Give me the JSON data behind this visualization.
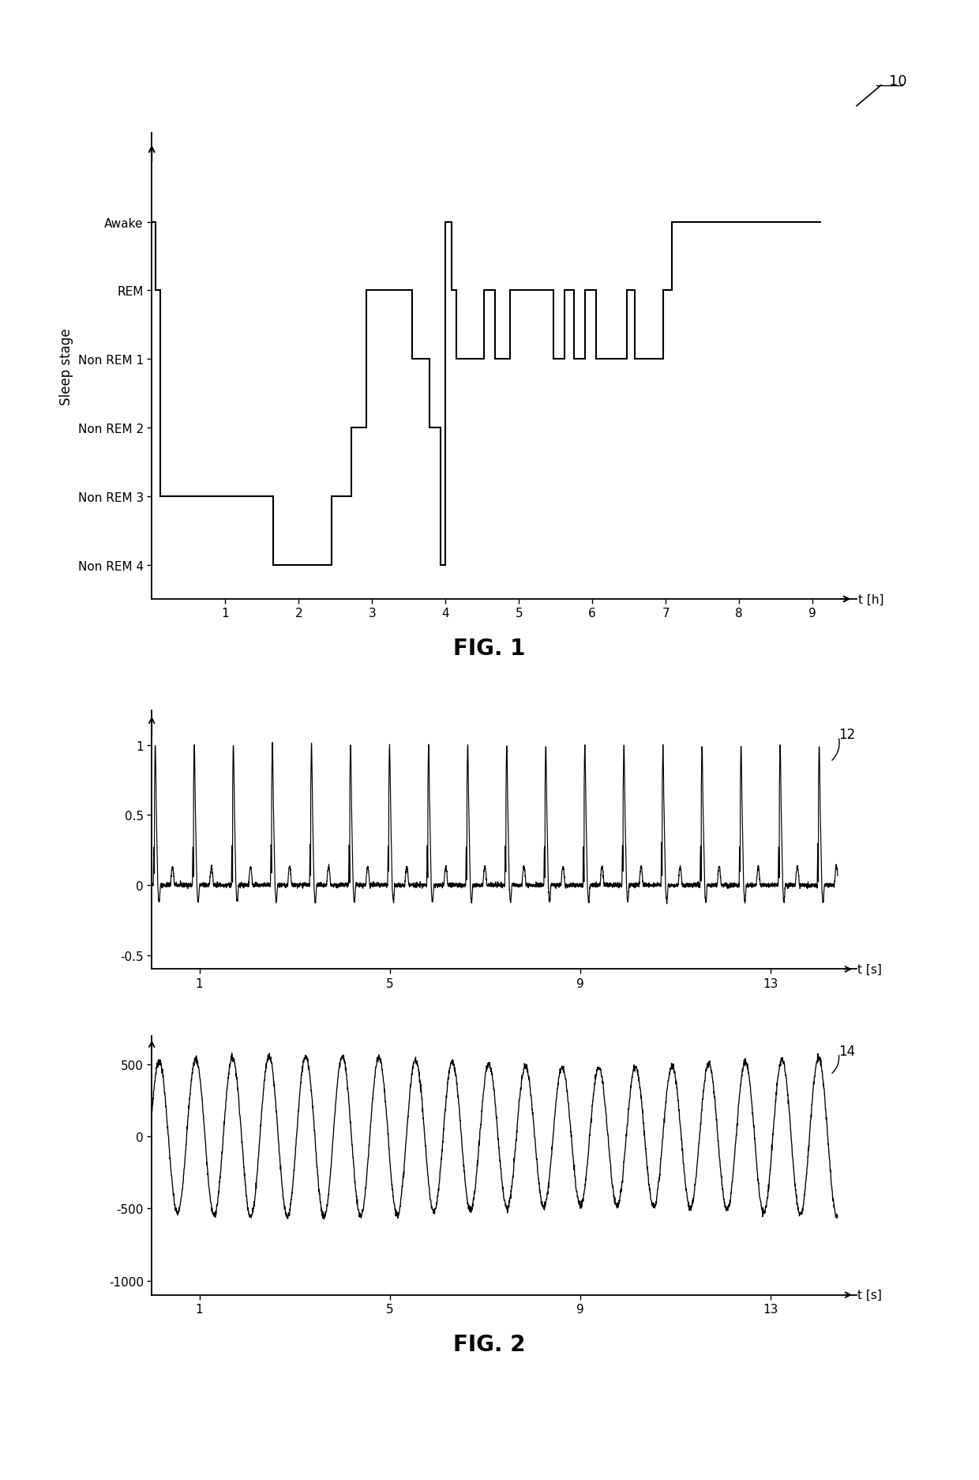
{
  "fig1_title": "FIG. 1",
  "fig2_title": "FIG. 2",
  "sleep_ylabel": "Sleep stage",
  "sleep_xlabel": "t [h]",
  "sleep_ytick_vals": [
    0,
    1,
    2,
    3,
    4,
    5
  ],
  "sleep_yticklabels": [
    "Non REM 4",
    "Non REM 3",
    "Non REM 2",
    "Non REM 1",
    "REM",
    "Awake"
  ],
  "sleep_xlim": [
    0,
    9.6
  ],
  "sleep_ylim": [
    -0.5,
    6.3
  ],
  "sleep_xticks": [
    1,
    2,
    3,
    4,
    5,
    6,
    7,
    8,
    9
  ],
  "ecg_xlabel": "t [s]",
  "ecg_xlim": [
    0,
    14.8
  ],
  "ecg_ylim": [
    -0.6,
    1.25
  ],
  "ecg_yticks": [
    -0.5,
    0,
    0.5,
    1.0
  ],
  "ecg_yticklabels": [
    "-0.5",
    "0",
    "0.5",
    "1"
  ],
  "ecg_xticks": [
    1,
    5,
    9,
    13
  ],
  "accel_xlabel": "t [s]",
  "accel_xlim": [
    0,
    14.8
  ],
  "accel_ylim": [
    -1100,
    700
  ],
  "accel_yticks": [
    -1000,
    -500,
    0,
    500
  ],
  "accel_yticklabels": [
    "-1000",
    "-500",
    "0",
    "500"
  ],
  "accel_xticks": [
    1,
    5,
    9,
    13
  ],
  "label_12": "12",
  "label_14": "14",
  "label_10": "10",
  "background_color": "#ffffff",
  "line_color": "#000000",
  "hyp_times": [
    0,
    0.05,
    0.12,
    1.65,
    2.45,
    2.72,
    2.92,
    3.55,
    3.78,
    3.93,
    4.0,
    4.08,
    4.15,
    4.52,
    4.67,
    4.88,
    5.47,
    5.62,
    5.75,
    5.9,
    6.05,
    6.47,
    6.58,
    6.97,
    7.08,
    8.6,
    9.1
  ],
  "hyp_stages": [
    5,
    4,
    1,
    0,
    1,
    2,
    4,
    3,
    2,
    0,
    5,
    4,
    3,
    4,
    3,
    4,
    3,
    4,
    3,
    4,
    3,
    4,
    3,
    4,
    5,
    5,
    5
  ]
}
